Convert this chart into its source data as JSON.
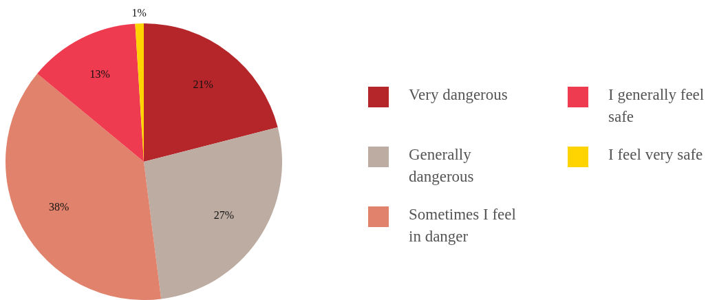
{
  "chart_data": {
    "type": "pie",
    "categories": [
      "Very dangerous",
      "Generally dangerous",
      "Sometimes I feel in danger",
      "I generally feel safe",
      "I feel very safe"
    ],
    "values": [
      21,
      27,
      38,
      13,
      1
    ],
    "colors": [
      "#b5262b",
      "#bcaca2",
      "#e0826c",
      "#ef3b4f",
      "#ffd400"
    ],
    "value_labels": [
      "21%",
      "27%",
      "38%",
      "13%",
      "1%"
    ],
    "legend": "right"
  }
}
